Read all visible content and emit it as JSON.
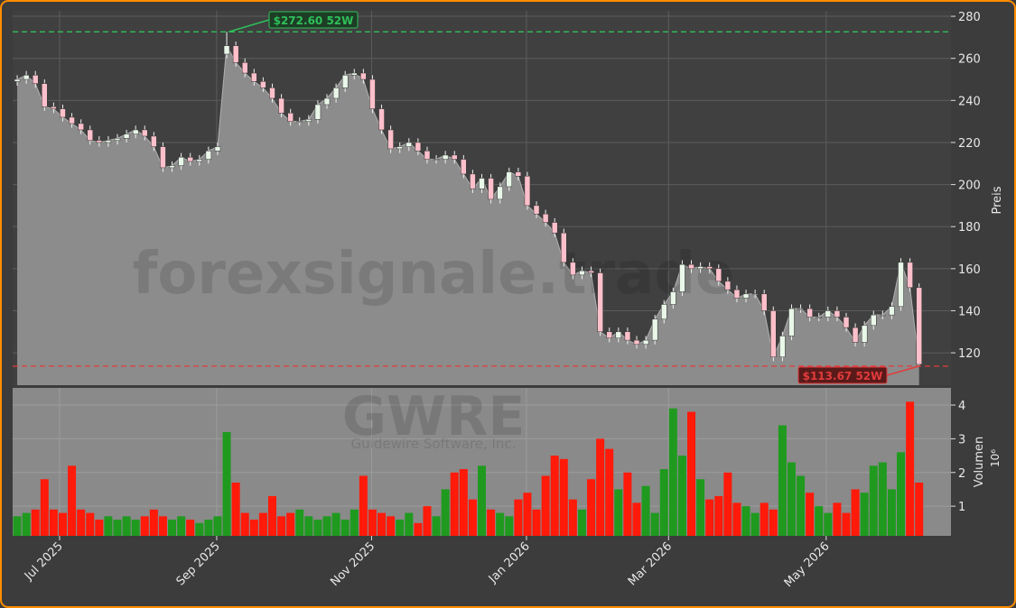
{
  "chart_data": [
    {
      "type": "candlestick",
      "watermark": "forexsignale.trade",
      "ylabel": "Preis",
      "up_color": "#e9f7e9",
      "down_color": "#ffc0cb",
      "area_color": "#8c8c8c",
      "grid": true,
      "xlim": [
        -0.5,
        102.5
      ],
      "ylim": [
        104.6,
        282.6
      ],
      "yticks": [
        120,
        140,
        160,
        180,
        200,
        220,
        240,
        260,
        280
      ],
      "open": [
        249,
        250,
        252,
        248,
        237,
        236,
        232,
        229,
        226,
        221,
        220,
        221,
        222,
        224,
        226,
        223,
        218,
        208,
        209,
        213,
        211,
        212,
        216,
        262,
        266,
        258,
        253,
        249,
        246,
        241,
        234,
        230,
        230,
        231,
        238,
        241,
        246,
        252,
        253,
        250,
        236,
        226,
        217,
        218,
        220,
        216,
        212,
        212,
        214,
        212,
        205,
        198,
        203,
        193,
        199,
        206,
        204,
        190,
        186,
        182,
        177,
        163,
        157,
        159,
        158,
        130,
        127,
        130,
        126,
        124,
        126,
        136,
        143,
        149,
        162,
        160,
        161,
        160,
        154,
        150,
        146,
        148,
        148,
        140,
        118,
        128,
        141,
        141,
        137,
        137,
        140,
        137,
        132,
        125,
        133,
        138,
        138,
        142,
        163,
        151
      ],
      "high": [
        252,
        254,
        254,
        250,
        239,
        238,
        234,
        231,
        228,
        223,
        223,
        224,
        226,
        228,
        228,
        225,
        220,
        211,
        215,
        215,
        214,
        218,
        220,
        272.6,
        268,
        260,
        255,
        251,
        248,
        243,
        236,
        232,
        233,
        240,
        243,
        248,
        254,
        255,
        255,
        252,
        238,
        228,
        220,
        222,
        222,
        218,
        214,
        216,
        216,
        214,
        207,
        205,
        205,
        201,
        208,
        208,
        206,
        192,
        188,
        184,
        179,
        165,
        161,
        161,
        160,
        132,
        132,
        132,
        128,
        128,
        138,
        145,
        151,
        164,
        164,
        163,
        163,
        162,
        156,
        152,
        150,
        150,
        150,
        142,
        130,
        143,
        143,
        143,
        139,
        142,
        142,
        139,
        134,
        135,
        140,
        140,
        144,
        165,
        165,
        153
      ],
      "low": [
        247,
        248,
        246,
        235,
        234,
        230,
        227,
        224,
        219,
        218,
        218,
        219,
        220,
        222,
        221,
        216,
        206,
        206,
        207,
        209,
        209,
        210,
        214,
        260,
        256,
        251,
        247,
        244,
        239,
        232,
        228,
        228,
        228,
        229,
        236,
        239,
        244,
        250,
        248,
        234,
        224,
        215,
        215,
        216,
        214,
        210,
        210,
        210,
        210,
        203,
        196,
        196,
        191,
        191,
        197,
        202,
        188,
        184,
        180,
        175,
        161,
        155,
        155,
        156,
        128,
        125,
        125,
        124,
        122,
        122,
        124,
        134,
        141,
        147,
        158,
        158,
        158,
        152,
        148,
        144,
        144,
        146,
        138,
        116,
        116,
        126,
        139,
        135,
        135,
        135,
        135,
        130,
        123,
        123,
        131,
        136,
        136,
        140,
        149,
        113.67
      ],
      "close": [
        250,
        252,
        248,
        237,
        236,
        232,
        229,
        226,
        221,
        220,
        221,
        222,
        224,
        226,
        223,
        218,
        208,
        209,
        213,
        211,
        212,
        216,
        218,
        266,
        258,
        253,
        249,
        246,
        241,
        234,
        230,
        230,
        231,
        238,
        241,
        246,
        252,
        253,
        250,
        236,
        226,
        217,
        218,
        220,
        216,
        212,
        212,
        214,
        212,
        205,
        198,
        203,
        193,
        199,
        206,
        204,
        190,
        186,
        182,
        177,
        163,
        157,
        159,
        158,
        130,
        127,
        130,
        126,
        124,
        126,
        136,
        143,
        149,
        162,
        160,
        161,
        160,
        154,
        150,
        146,
        148,
        148,
        140,
        118,
        128,
        141,
        141,
        137,
        137,
        140,
        137,
        132,
        125,
        133,
        138,
        138,
        142,
        163,
        151,
        114.5
      ],
      "annotations": [
        {
          "text": "$272.60 52W",
          "value": 272.6,
          "color": "#2fbf5a"
        },
        {
          "text": "$113.67 52W",
          "value": 113.67,
          "color": "#e23b3b"
        }
      ]
    },
    {
      "type": "bar",
      "title": "GWRE",
      "subtitle": "Guidewire Software, Inc.",
      "ylabel": "Volumen",
      "offset_label": "10⁶",
      "up_color": "#1f9a1f",
      "down_color": "#ff1a0a",
      "xlim": [
        -0.5,
        102.5
      ],
      "ylim": [
        0.12,
        4.51
      ],
      "yticks": [
        1,
        2,
        3,
        4
      ],
      "xticks": [
        {
          "value": 4.65,
          "label": "Jul 2025"
        },
        {
          "value": 21.9,
          "label": "Sep 2025"
        },
        {
          "value": 38.9,
          "label": "Nov 2025"
        },
        {
          "value": 55.9,
          "label": "Jan 2026"
        },
        {
          "value": 71.5,
          "label": "Mar 2026"
        },
        {
          "value": 88.8,
          "label": "May 2026"
        }
      ],
      "values": [
        0.7,
        0.8,
        0.9,
        1.8,
        0.9,
        0.8,
        2.2,
        0.9,
        0.8,
        0.6,
        0.7,
        0.6,
        0.7,
        0.6,
        0.7,
        0.9,
        0.7,
        0.6,
        0.7,
        0.6,
        0.5,
        0.6,
        0.7,
        3.2,
        1.7,
        0.8,
        0.6,
        0.8,
        1.3,
        0.7,
        0.8,
        0.9,
        0.7,
        0.6,
        0.7,
        0.8,
        0.6,
        0.9,
        1.9,
        0.9,
        0.8,
        0.7,
        0.6,
        0.8,
        0.5,
        1.0,
        0.7,
        1.5,
        2.0,
        2.1,
        1.2,
        2.2,
        0.9,
        0.8,
        0.7,
        1.2,
        1.4,
        0.9,
        1.9,
        2.5,
        2.4,
        1.2,
        0.9,
        1.8,
        3.0,
        2.7,
        1.5,
        2.0,
        1.1,
        1.6,
        0.8,
        2.1,
        3.9,
        2.5,
        3.8,
        1.8,
        1.2,
        1.3,
        2.0,
        1.1,
        1.0,
        0.8,
        1.1,
        0.9,
        3.4,
        2.3,
        1.9,
        1.4,
        1.0,
        0.8,
        1.1,
        0.8,
        1.5,
        1.4,
        2.2,
        2.3,
        1.5,
        2.6,
        4.1,
        1.7
      ]
    }
  ]
}
